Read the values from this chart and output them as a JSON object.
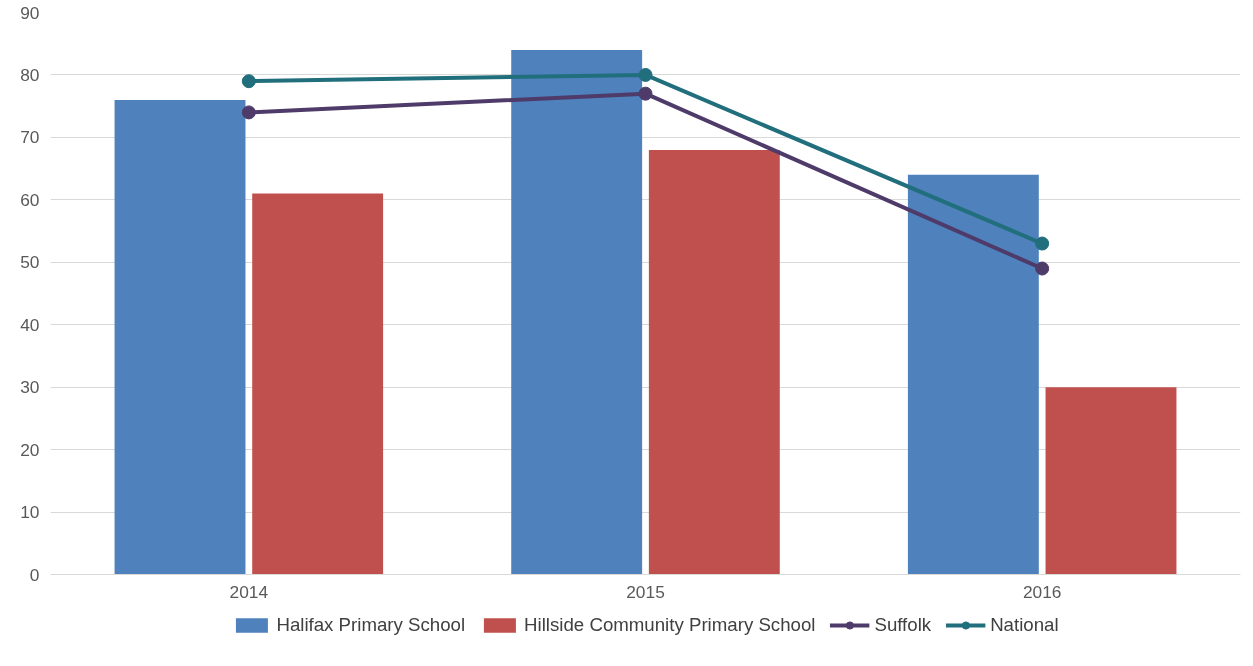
{
  "chart_data": {
    "type": "bar",
    "categories": [
      "2014",
      "2015",
      "2016"
    ],
    "series": [
      {
        "name": "Halifax Primary School",
        "color": "#4f81bd",
        "values": [
          76,
          84,
          64
        ]
      },
      {
        "name": "Hillside Community Primary School",
        "color": "#c0504d",
        "values": [
          61,
          68,
          30
        ]
      },
      {
        "name": "Suffolk",
        "type": "line",
        "color": "#4e3b69",
        "values": [
          74,
          77,
          49
        ]
      },
      {
        "name": "National",
        "type": "line",
        "color": "#216e7c",
        "values": [
          79,
          80,
          53
        ]
      }
    ],
    "ylim": [
      0,
      90
    ],
    "yticks": [
      0,
      10,
      20,
      30,
      40,
      50,
      60,
      70,
      80,
      90
    ],
    "grid": "y",
    "legend": "bottom",
    "marker": "circle",
    "line_style": "solid"
  }
}
